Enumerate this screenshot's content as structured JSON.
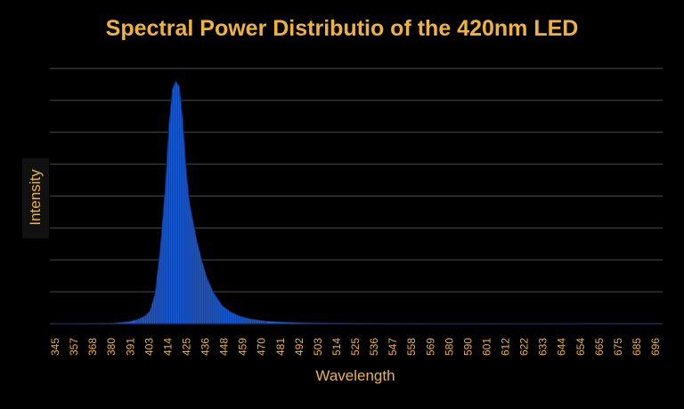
{
  "chart_data": {
    "type": "area",
    "title": "Spectral Power Distributio of the 420nm LED",
    "xlabel": "Wavelength",
    "ylabel": "Intensity",
    "x_tick_labels": [
      "345",
      "357",
      "368",
      "380",
      "391",
      "403",
      "414",
      "425",
      "436",
      "448",
      "459",
      "470",
      "481",
      "492",
      "503",
      "514",
      "525",
      "536",
      "547",
      "558",
      "569",
      "580",
      "590",
      "601",
      "612",
      "622",
      "633",
      "644",
      "654",
      "665",
      "675",
      "685",
      "696"
    ],
    "xlim": [
      345,
      700
    ],
    "ylim": [
      0,
      1
    ],
    "y_gridlines": 8,
    "grid": true,
    "y_tick_labels_shown": false,
    "series": [
      {
        "color": "#1f5fd6",
        "x": [
          345,
          380,
          391,
          395,
          400,
          403,
          406,
          409,
          412,
          414,
          416,
          418,
          420,
          422,
          424,
          426,
          428,
          430,
          433,
          436,
          440,
          445,
          450,
          455,
          460,
          470,
          481,
          492,
          503,
          520,
          547,
          580,
          620,
          660,
          700
        ],
        "y": [
          0.0,
          0.002,
          0.008,
          0.015,
          0.03,
          0.05,
          0.12,
          0.3,
          0.55,
          0.78,
          0.92,
          0.95,
          0.93,
          0.8,
          0.6,
          0.47,
          0.4,
          0.33,
          0.25,
          0.18,
          0.12,
          0.07,
          0.045,
          0.03,
          0.02,
          0.01,
          0.006,
          0.004,
          0.003,
          0.002,
          0.001,
          0.0005,
          0.0003,
          0.0001,
          0.0
        ]
      }
    ]
  },
  "colors": {
    "background": "#000000",
    "title": "#f0b33a",
    "axis_text": "#f0b33a",
    "grid": "#4a4a4a",
    "fill": "#1f5fd6",
    "stroke": "#0a2a70"
  }
}
